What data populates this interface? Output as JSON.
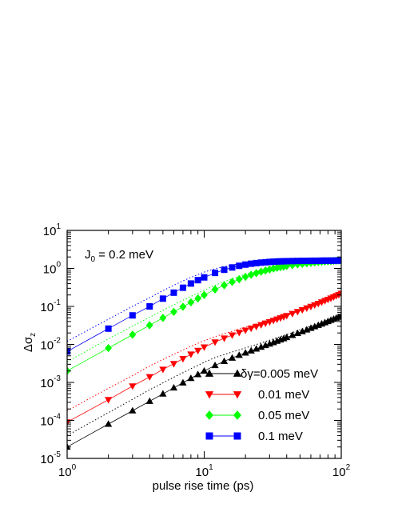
{
  "chart_data": {
    "type": "line",
    "title": "",
    "xlabel": "pulse rise time (ps)",
    "ylabel": "Δσ",
    "ylabel_subscript": "z",
    "xscale": "log",
    "yscale": "log",
    "xlim": [
      1,
      100
    ],
    "ylim": [
      1e-05,
      10
    ],
    "x_ticks": [
      {
        "value": 1,
        "base": "10",
        "exp": "0"
      },
      {
        "value": 10,
        "base": "10",
        "exp": "1"
      },
      {
        "value": 100,
        "base": "10",
        "exp": "2"
      }
    ],
    "y_ticks": [
      {
        "value": 1e-05,
        "base": "10",
        "exp": "-5"
      },
      {
        "value": 0.0001,
        "base": "10",
        "exp": "-4"
      },
      {
        "value": 0.001,
        "base": "10",
        "exp": "-3"
      },
      {
        "value": 0.01,
        "base": "10",
        "exp": "-2"
      },
      {
        "value": 0.1,
        "base": "10",
        "exp": "-1"
      },
      {
        "value": 1,
        "base": "10",
        "exp": "0"
      },
      {
        "value": 10,
        "base": "10",
        "exp": "1"
      }
    ],
    "annotation": {
      "main": "J",
      "sub": "0",
      "rest": " = 0.2 meV"
    },
    "legend_position": "bottom-right",
    "grid": false,
    "series": [
      {
        "name": "δγ=0.005 meV",
        "marker": "triangle-up",
        "color": "#000000",
        "x": [
          1,
          2,
          3,
          4,
          5,
          6,
          7,
          8,
          9,
          10,
          12,
          14,
          16,
          18,
          20,
          22,
          24,
          26,
          28,
          30,
          32,
          34,
          36,
          38,
          40,
          44,
          48,
          52,
          56,
          60,
          64,
          68,
          72,
          76,
          80,
          84,
          88,
          92,
          96,
          100
        ],
        "y": [
          2e-05,
          8e-05,
          0.00018,
          0.00032,
          0.0005,
          0.00072,
          0.00098,
          0.00128,
          0.00162,
          0.002,
          0.0028,
          0.0036,
          0.0044,
          0.0052,
          0.006,
          0.0068,
          0.0076,
          0.0085,
          0.0094,
          0.0103,
          0.0112,
          0.0122,
          0.0132,
          0.0142,
          0.0153,
          0.0174,
          0.0196,
          0.0219,
          0.0243,
          0.0268,
          0.0294,
          0.032,
          0.0347,
          0.0375,
          0.0404,
          0.0434,
          0.0464,
          0.0495,
          0.0527,
          0.056
        ],
        "dotted_y": [
          4e-05,
          0.00016,
          0.00036,
          0.00064,
          0.00097,
          0.00137,
          0.0018,
          0.0023,
          0.0028,
          0.0034,
          0.0045,
          0.0054,
          0.0063,
          0.0072,
          0.0081,
          0.009,
          0.0099,
          0.0109,
          0.0119,
          0.0129,
          0.0139,
          0.015,
          0.016,
          0.0171,
          0.0182,
          0.0205,
          0.0229,
          0.0253,
          0.0278,
          0.0304,
          0.033,
          0.0357,
          0.0385,
          0.0413,
          0.0442,
          0.0471,
          0.0501,
          0.0532,
          0.0563,
          0.0595
        ]
      },
      {
        "name": "0.01 meV",
        "marker": "triangle-down",
        "color": "#ff0000",
        "x": [
          1,
          2,
          3,
          4,
          5,
          6,
          7,
          8,
          9,
          10,
          12,
          14,
          16,
          18,
          20,
          22,
          24,
          26,
          28,
          30,
          32,
          34,
          36,
          38,
          40,
          44,
          48,
          52,
          56,
          60,
          64,
          68,
          72,
          76,
          80,
          84,
          88,
          92,
          96,
          100
        ],
        "y": [
          9e-05,
          0.00035,
          0.0008,
          0.0014,
          0.0022,
          0.0031,
          0.0042,
          0.0055,
          0.0069,
          0.0085,
          0.0115,
          0.0145,
          0.0175,
          0.0205,
          0.0235,
          0.0265,
          0.0295,
          0.0327,
          0.036,
          0.0393,
          0.0426,
          0.046,
          0.0496,
          0.0532,
          0.057,
          0.0645,
          0.0725,
          0.081,
          0.09,
          0.099,
          0.109,
          0.119,
          0.13,
          0.141,
          0.152,
          0.164,
          0.177,
          0.19,
          0.203,
          0.22
        ],
        "dotted_y": [
          0.00018,
          0.0007,
          0.0015,
          0.0027,
          0.004,
          0.0055,
          0.0071,
          0.0089,
          0.0107,
          0.0125,
          0.016,
          0.0192,
          0.0223,
          0.0254,
          0.0285,
          0.0316,
          0.0347,
          0.038,
          0.0413,
          0.0447,
          0.0481,
          0.0516,
          0.0552,
          0.0589,
          0.0627,
          0.0703,
          0.0782,
          0.0866,
          0.0955,
          0.104,
          0.114,
          0.124,
          0.135,
          0.146,
          0.157,
          0.169,
          0.181,
          0.194,
          0.207,
          0.221
        ]
      },
      {
        "name": "0.05 meV",
        "marker": "diamond",
        "color": "#00ff00",
        "x": [
          1,
          2,
          3,
          4,
          5,
          6,
          7,
          8,
          9,
          10,
          12,
          14,
          16,
          18,
          20,
          22,
          24,
          26,
          28,
          30,
          32,
          34,
          36,
          38,
          40,
          44,
          48,
          52,
          56,
          60,
          64,
          68,
          72,
          76,
          80,
          84,
          88,
          92,
          96,
          100
        ],
        "y": [
          0.002,
          0.008,
          0.018,
          0.032,
          0.05,
          0.072,
          0.098,
          0.128,
          0.162,
          0.2,
          0.28,
          0.36,
          0.44,
          0.52,
          0.6,
          0.68,
          0.75,
          0.82,
          0.88,
          0.94,
          0.99,
          1.04,
          1.08,
          1.12,
          1.16,
          1.22,
          1.28,
          1.33,
          1.37,
          1.41,
          1.44,
          1.47,
          1.5,
          1.52,
          1.54,
          1.56,
          1.58,
          1.6,
          1.61,
          1.62
        ],
        "dotted_y": [
          0.0035,
          0.014,
          0.03,
          0.052,
          0.079,
          0.11,
          0.145,
          0.183,
          0.224,
          0.267,
          0.36,
          0.45,
          0.54,
          0.62,
          0.7,
          0.77,
          0.84,
          0.9,
          0.95,
          1.0,
          1.05,
          1.09,
          1.13,
          1.17,
          1.2,
          1.26,
          1.31,
          1.36,
          1.4,
          1.43,
          1.46,
          1.49,
          1.52,
          1.54,
          1.56,
          1.58,
          1.59,
          1.61,
          1.62,
          1.63
        ]
      },
      {
        "name": "0.1 meV",
        "marker": "square",
        "color": "#0000ff",
        "x": [
          1,
          2,
          3,
          4,
          5,
          6,
          7,
          8,
          9,
          10,
          12,
          14,
          16,
          18,
          20,
          22,
          24,
          26,
          28,
          30,
          32,
          34,
          36,
          38,
          40,
          44,
          48,
          52,
          56,
          60,
          64,
          68,
          72,
          76,
          80,
          84,
          88,
          92,
          96,
          100
        ],
        "y": [
          0.0065,
          0.026,
          0.058,
          0.1,
          0.16,
          0.23,
          0.31,
          0.4,
          0.49,
          0.58,
          0.76,
          0.92,
          1.06,
          1.17,
          1.26,
          1.33,
          1.38,
          1.42,
          1.45,
          1.48,
          1.5,
          1.52,
          1.53,
          1.54,
          1.55,
          1.56,
          1.57,
          1.58,
          1.58,
          1.59,
          1.59,
          1.59,
          1.6,
          1.6,
          1.6,
          1.6,
          1.6,
          1.61,
          1.61,
          1.61
        ],
        "dotted_y": [
          0.012,
          0.046,
          0.1,
          0.17,
          0.26,
          0.36,
          0.47,
          0.58,
          0.69,
          0.8,
          0.98,
          1.12,
          1.23,
          1.31,
          1.37,
          1.42,
          1.45,
          1.48,
          1.5,
          1.52,
          1.53,
          1.54,
          1.55,
          1.56,
          1.56,
          1.57,
          1.58,
          1.58,
          1.59,
          1.59,
          1.59,
          1.6,
          1.6,
          1.6,
          1.6,
          1.6,
          1.6,
          1.61,
          1.61,
          1.61
        ]
      }
    ]
  }
}
